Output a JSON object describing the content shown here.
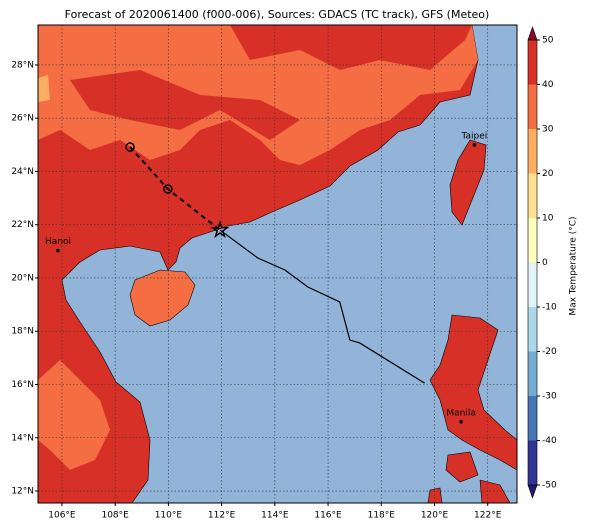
{
  "chart_data": {
    "type": "map",
    "title": "Forecast of 2020061400 (f000-006), Sources: GDACS (TC track), GFS (Meteo)",
    "xlim": [
      105.1,
      123.1
    ],
    "ylim": [
      11.55,
      29.5
    ],
    "xticks": [
      {
        "value": 106,
        "label": "106°E"
      },
      {
        "value": 108,
        "label": "108°E"
      },
      {
        "value": 110,
        "label": "110°E"
      },
      {
        "value": 112,
        "label": "112°E"
      },
      {
        "value": 114,
        "label": "114°E"
      },
      {
        "value": 116,
        "label": "116°E"
      },
      {
        "value": 118,
        "label": "118°E"
      },
      {
        "value": 120,
        "label": "120°E"
      },
      {
        "value": 122,
        "label": "122°E"
      }
    ],
    "yticks": [
      {
        "value": 12,
        "label": "12°N"
      },
      {
        "value": 14,
        "label": "14°N"
      },
      {
        "value": 16,
        "label": "16°N"
      },
      {
        "value": 18,
        "label": "18°N"
      },
      {
        "value": 20,
        "label": "20°N"
      },
      {
        "value": 22,
        "label": "22°N"
      },
      {
        "value": 24,
        "label": "24°N"
      },
      {
        "value": 26,
        "label": "26°N"
      },
      {
        "value": 28,
        "label": "28°N"
      }
    ],
    "grid": true,
    "sea_color": "#92b4d8",
    "track": {
      "color": "#000000",
      "forecast": {
        "lon": [
          108.56,
          109.98,
          111.94
        ],
        "lat": [
          24.92,
          23.34,
          21.8
        ]
      },
      "past": {
        "lon": [
          111.94,
          113.36,
          114.38,
          115.24,
          116.44,
          116.82,
          117.19,
          119.63
        ],
        "lat": [
          21.8,
          20.75,
          20.3,
          19.66,
          19.1,
          17.67,
          17.56,
          16.05
        ]
      }
    },
    "cities": [
      {
        "name": "Hanoi",
        "lon": 105.85,
        "lat": 21.03
      },
      {
        "name": "Taipei",
        "lon": 121.5,
        "lat": 25.0
      },
      {
        "name": "Manila",
        "lon": 121.0,
        "lat": 14.6
      }
    ],
    "colorbar": {
      "label": "Max Temperature (°C)",
      "ticks": [
        -50,
        -40,
        -30,
        -20,
        -10,
        0,
        10,
        20,
        30,
        40,
        50
      ],
      "colors": [
        "#313695",
        "#4575b4",
        "#74add1",
        "#abd9e9",
        "#e0f3f8",
        "#ffffbf",
        "#fee090",
        "#fdae61",
        "#f46d43",
        "#d73027"
      ],
      "under_color": "#1c1c70",
      "over_color": "#8b0a26"
    }
  }
}
